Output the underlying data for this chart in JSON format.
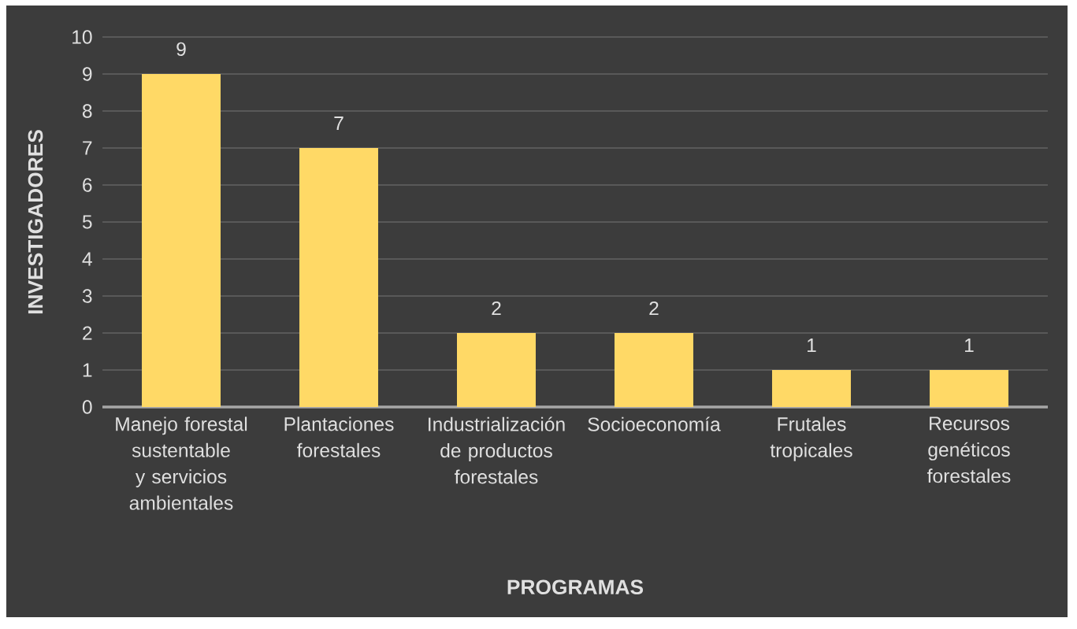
{
  "chart_data": {
    "type": "bar",
    "xlabel": "PROGRAMAS",
    "ylabel": "INVESTIGADORES",
    "categories": [
      "Manejo forestal sustentable y servicios ambientales",
      "Plantaciones forestales",
      "Industrialización de productos forestales",
      "Socioeconomía",
      "Frutales tropicales",
      "Recursos genéticos forestales"
    ],
    "values": [
      9,
      7,
      2,
      2,
      1,
      1
    ],
    "color": "#ffd966",
    "ylim": [
      0,
      10
    ],
    "yticks": [
      0,
      1,
      2,
      3,
      4,
      5,
      6,
      7,
      8,
      9,
      10
    ],
    "grid": "y",
    "data_labels": true
  }
}
